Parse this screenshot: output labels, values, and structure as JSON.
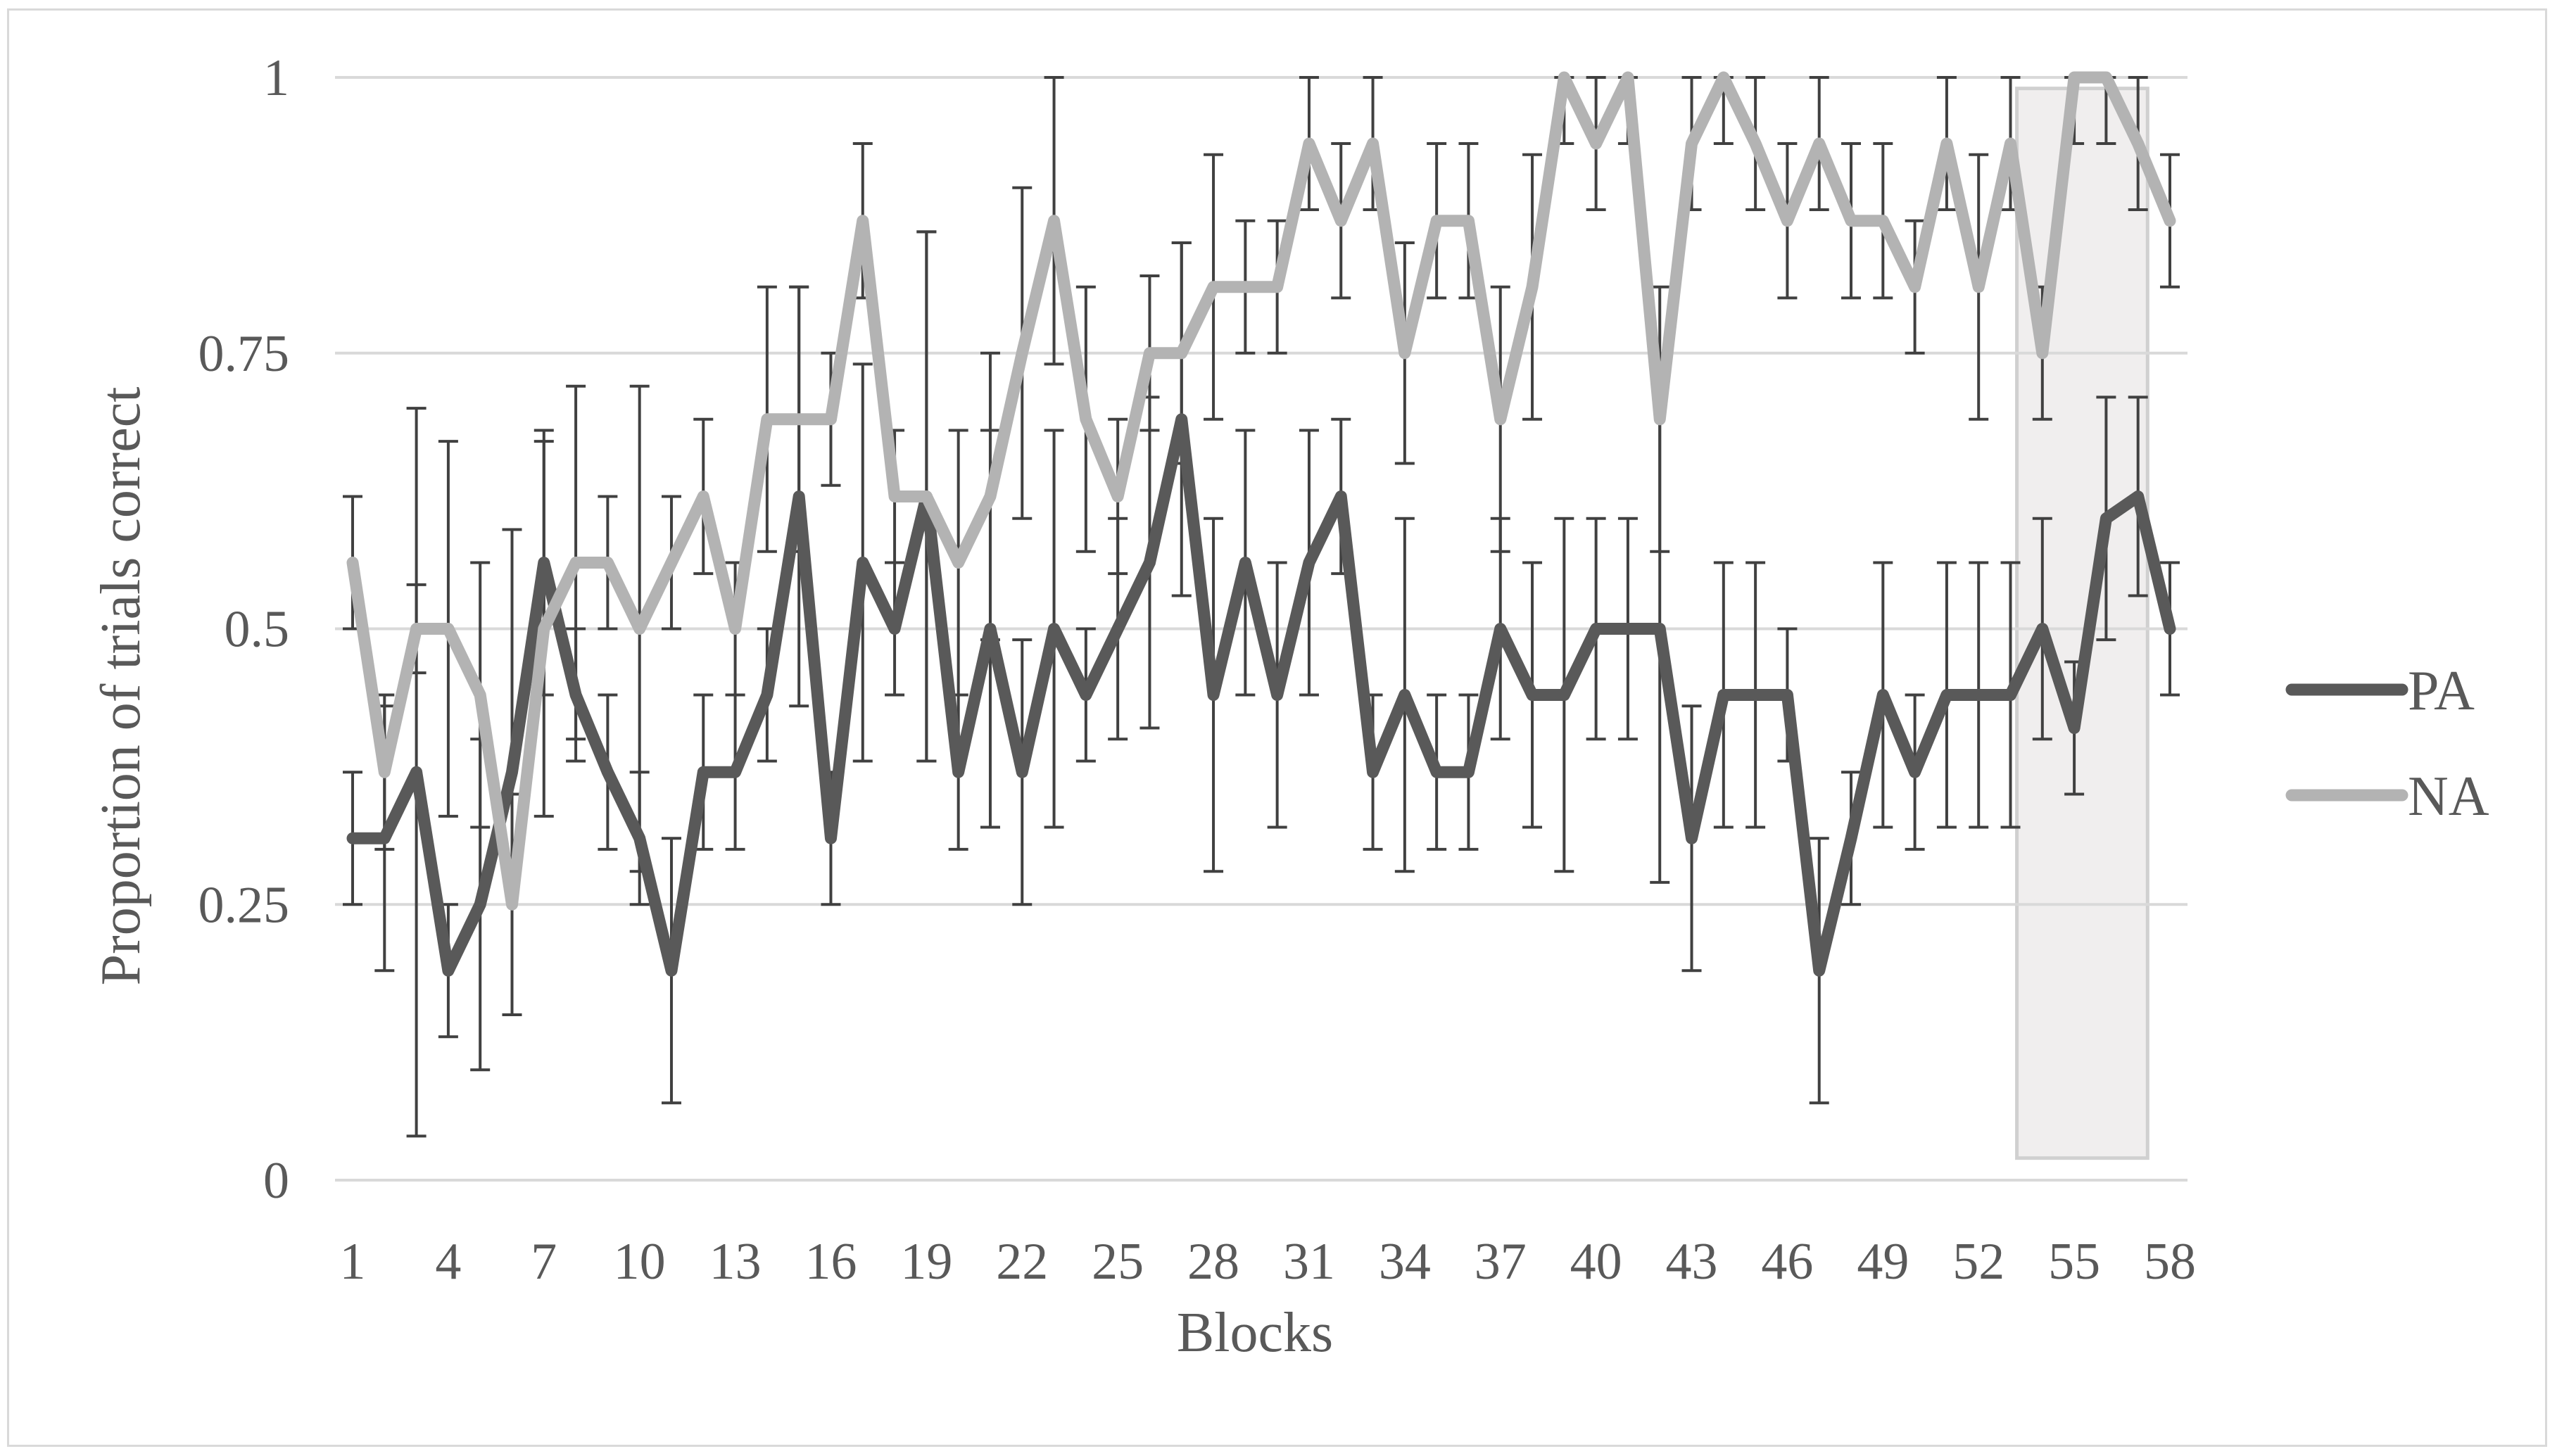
{
  "chart_data": {
    "type": "line",
    "xlabel": "Blocks",
    "ylabel": "Proportion of trials correct",
    "ylim": [
      0,
      1
    ],
    "yticks": [
      "0",
      "0.25",
      "0.5",
      "0.75",
      "1"
    ],
    "x": [
      1,
      2,
      3,
      4,
      5,
      6,
      7,
      8,
      9,
      10,
      11,
      12,
      13,
      14,
      15,
      16,
      17,
      18,
      19,
      20,
      21,
      22,
      23,
      24,
      25,
      26,
      27,
      28,
      29,
      30,
      31,
      32,
      33,
      34,
      35,
      36,
      37,
      38,
      39,
      40,
      41,
      42,
      43,
      44,
      45,
      46,
      47,
      48,
      49,
      50,
      51,
      52,
      53,
      54,
      55,
      56,
      57,
      58
    ],
    "xticks_shown": [
      "1",
      "4",
      "7",
      "10",
      "13",
      "16",
      "19",
      "22",
      "25",
      "28",
      "31",
      "34",
      "37",
      "40",
      "43",
      "46",
      "49",
      "52",
      "55",
      "58"
    ],
    "grid": "horizontal",
    "legend_position": "right",
    "highlight_region": {
      "x_start": 53.2,
      "x_end": 57.3,
      "color": "#f0eeee"
    },
    "series": [
      {
        "name": "PA",
        "color": "#595959",
        "values": [
          0.31,
          0.31,
          0.37,
          0.19,
          0.25,
          0.37,
          0.56,
          0.44,
          0.37,
          0.31,
          0.19,
          0.37,
          0.37,
          0.44,
          0.62,
          0.31,
          0.56,
          0.5,
          0.62,
          0.37,
          0.5,
          0.37,
          0.5,
          0.44,
          0.5,
          0.56,
          0.69,
          0.44,
          0.56,
          0.44,
          0.56,
          0.62,
          0.37,
          0.44,
          0.37,
          0.37,
          0.5,
          0.44,
          0.44,
          0.5,
          0.5,
          0.5,
          0.31,
          0.44,
          0.44,
          0.44,
          0.19,
          0.31,
          0.44,
          0.37,
          0.44,
          0.44,
          0.44,
          0.5,
          0.41,
          0.6,
          0.62,
          0.5
        ],
        "errors": [
          0.06,
          0.12,
          0.33,
          0.06,
          0.15,
          0.22,
          0.12,
          0.06,
          0.07,
          0.06,
          0.12,
          0.07,
          0.07,
          0.06,
          0.19,
          0.06,
          0.18,
          0.06,
          0.24,
          0.07,
          0.18,
          0.12,
          0.18,
          0.06,
          0.1,
          0.15,
          0.16,
          0.16,
          0.12,
          0.12,
          0.12,
          0.07,
          0.07,
          0.16,
          0.07,
          0.07,
          0.1,
          0.12,
          0.16,
          0.1,
          0.1,
          0.23,
          0.12,
          0.12,
          0.12,
          0.06,
          0.12,
          0.06,
          0.12,
          0.07,
          0.12,
          0.12,
          0.12,
          0.1,
          0.06,
          0.11,
          0.09,
          0.06
        ]
      },
      {
        "name": "NA",
        "color": "#b3b3b3",
        "values": [
          0.56,
          0.37,
          0.5,
          0.5,
          0.44,
          0.25,
          0.5,
          0.56,
          0.56,
          0.5,
          0.56,
          0.62,
          0.5,
          0.69,
          0.69,
          0.69,
          0.87,
          0.62,
          0.62,
          0.56,
          0.62,
          0.75,
          0.87,
          0.69,
          0.62,
          0.75,
          0.75,
          0.81,
          0.81,
          0.81,
          0.94,
          0.87,
          0.94,
          0.75,
          0.87,
          0.87,
          0.69,
          0.81,
          1.0,
          0.94,
          1.0,
          0.69,
          0.94,
          1.0,
          0.94,
          0.87,
          0.94,
          0.87,
          0.87,
          0.81,
          0.94,
          0.81,
          0.94,
          0.75,
          1.0,
          1.0,
          0.94,
          0.87
        ],
        "errors": [
          0.06,
          0.07,
          0.04,
          0.17,
          0.12,
          0.1,
          0.17,
          0.16,
          0.06,
          0.22,
          0.06,
          0.07,
          0.06,
          0.12,
          0.12,
          0.06,
          0.07,
          0.06,
          0.24,
          0.12,
          0.13,
          0.15,
          0.13,
          0.12,
          0.07,
          0.07,
          0.1,
          0.12,
          0.06,
          0.06,
          0.06,
          0.07,
          0.06,
          0.1,
          0.07,
          0.07,
          0.12,
          0.12,
          0.06,
          0.06,
          0.06,
          0.12,
          0.06,
          0.06,
          0.06,
          0.07,
          0.06,
          0.07,
          0.07,
          0.06,
          0.06,
          0.12,
          0.06,
          0.06,
          0.06,
          0.06,
          0.06,
          0.06
        ]
      }
    ]
  }
}
